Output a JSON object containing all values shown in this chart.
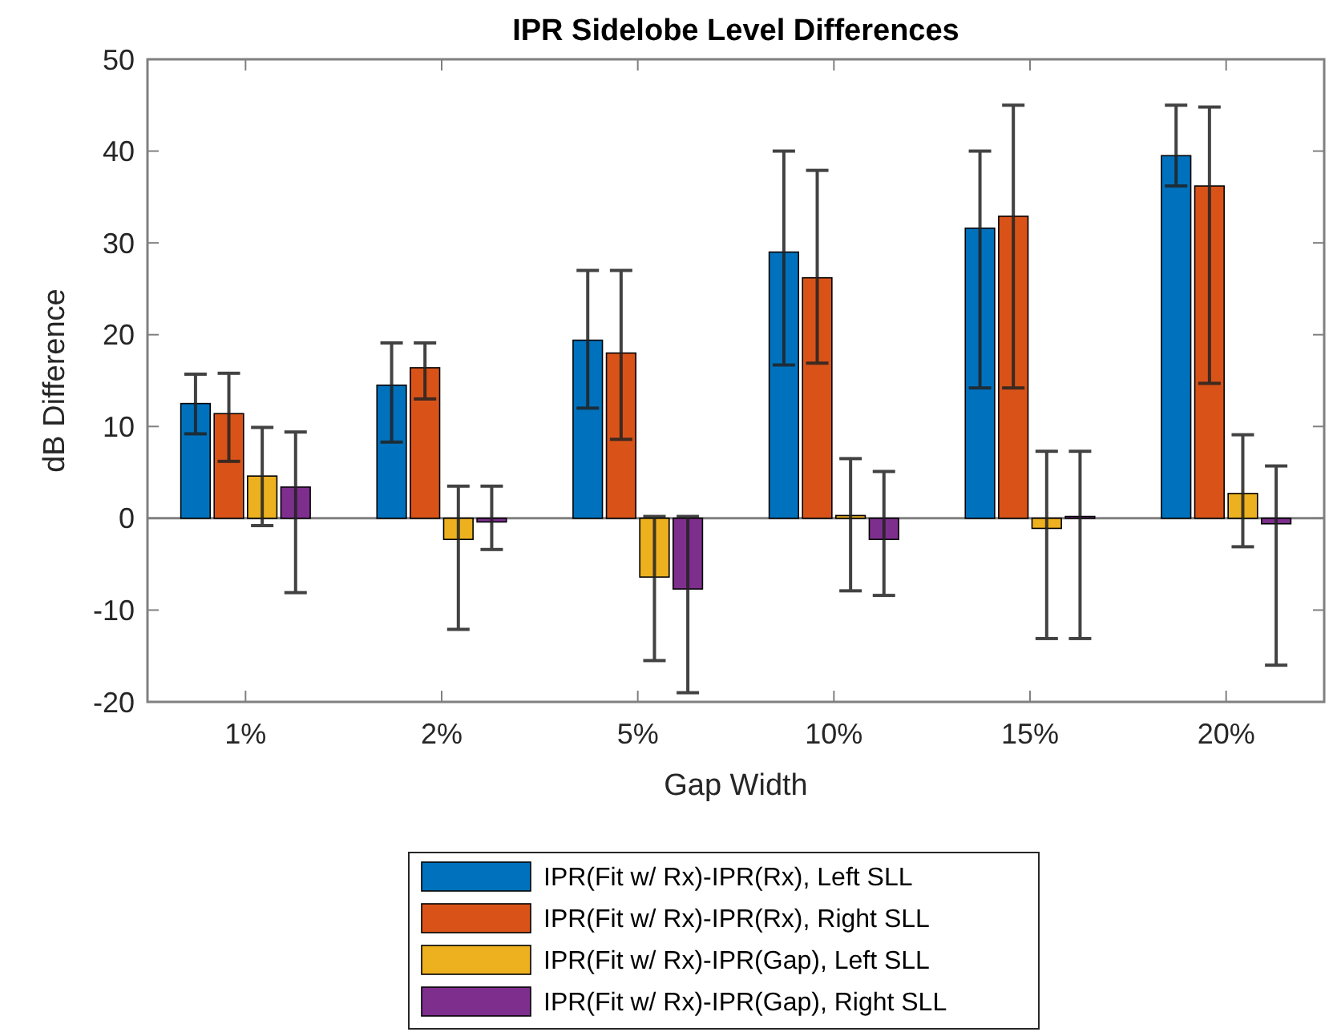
{
  "chart_data": {
    "type": "bar",
    "title": "IPR Sidelobe Level Differences",
    "xlabel": "Gap Width",
    "ylabel": "dB Difference",
    "categories": [
      "1%",
      "2%",
      "5%",
      "10%",
      "15%",
      "20%"
    ],
    "ylim": [
      -20,
      50
    ],
    "yticks": [
      -20,
      -10,
      0,
      10,
      20,
      30,
      40,
      50
    ],
    "legend": "bottom",
    "series": [
      {
        "name": "IPR(Fit w/ Rx)-IPR(Rx), Left SLL",
        "color": "#0072bd",
        "values": [
          12.5,
          14.5,
          19.4,
          29,
          31.6,
          39.5
        ],
        "errors": [
          [
            9.2,
            15.7
          ],
          [
            8.3,
            19.1
          ],
          [
            12,
            27
          ],
          [
            16.7,
            40
          ],
          [
            14.2,
            40
          ],
          [
            36.2,
            45
          ]
        ]
      },
      {
        "name": "IPR(Fit w/ Rx)-IPR(Rx), Right SLL",
        "color": "#d95319",
        "values": [
          11.4,
          16.4,
          18,
          26.2,
          32.9,
          36.2
        ],
        "errors": [
          [
            6.2,
            15.8
          ],
          [
            13,
            19.1
          ],
          [
            8.6,
            27
          ],
          [
            16.9,
            37.9
          ],
          [
            14.2,
            45
          ],
          [
            14.7,
            44.8
          ]
        ]
      },
      {
        "name": "IPR(Fit w/ Rx)-IPR(Gap), Left SLL",
        "color": "#edb120",
        "values": [
          4.6,
          -2.3,
          -6.4,
          0.3,
          -1.1,
          2.7
        ],
        "errors": [
          [
            -0.8,
            9.9
          ],
          [
            -12.1,
            3.5
          ],
          [
            -15.5,
            0.2
          ],
          [
            -7.9,
            6.5
          ],
          [
            -13.1,
            7.3
          ],
          [
            -3.1,
            9.1
          ]
        ]
      },
      {
        "name": "IPR(Fit w/ Rx)-IPR(Gap), Right SLL",
        "color": "#7e2f8e",
        "values": [
          3.4,
          -0.4,
          -7.7,
          -2.3,
          0.2,
          -0.6
        ],
        "errors": [
          [
            -8.1,
            9.4
          ],
          [
            -3.4,
            3.5
          ],
          [
            -19,
            0.2
          ],
          [
            -8.4,
            5.1
          ],
          [
            -13.1,
            7.3
          ],
          [
            -16,
            5.7
          ]
        ]
      }
    ]
  }
}
